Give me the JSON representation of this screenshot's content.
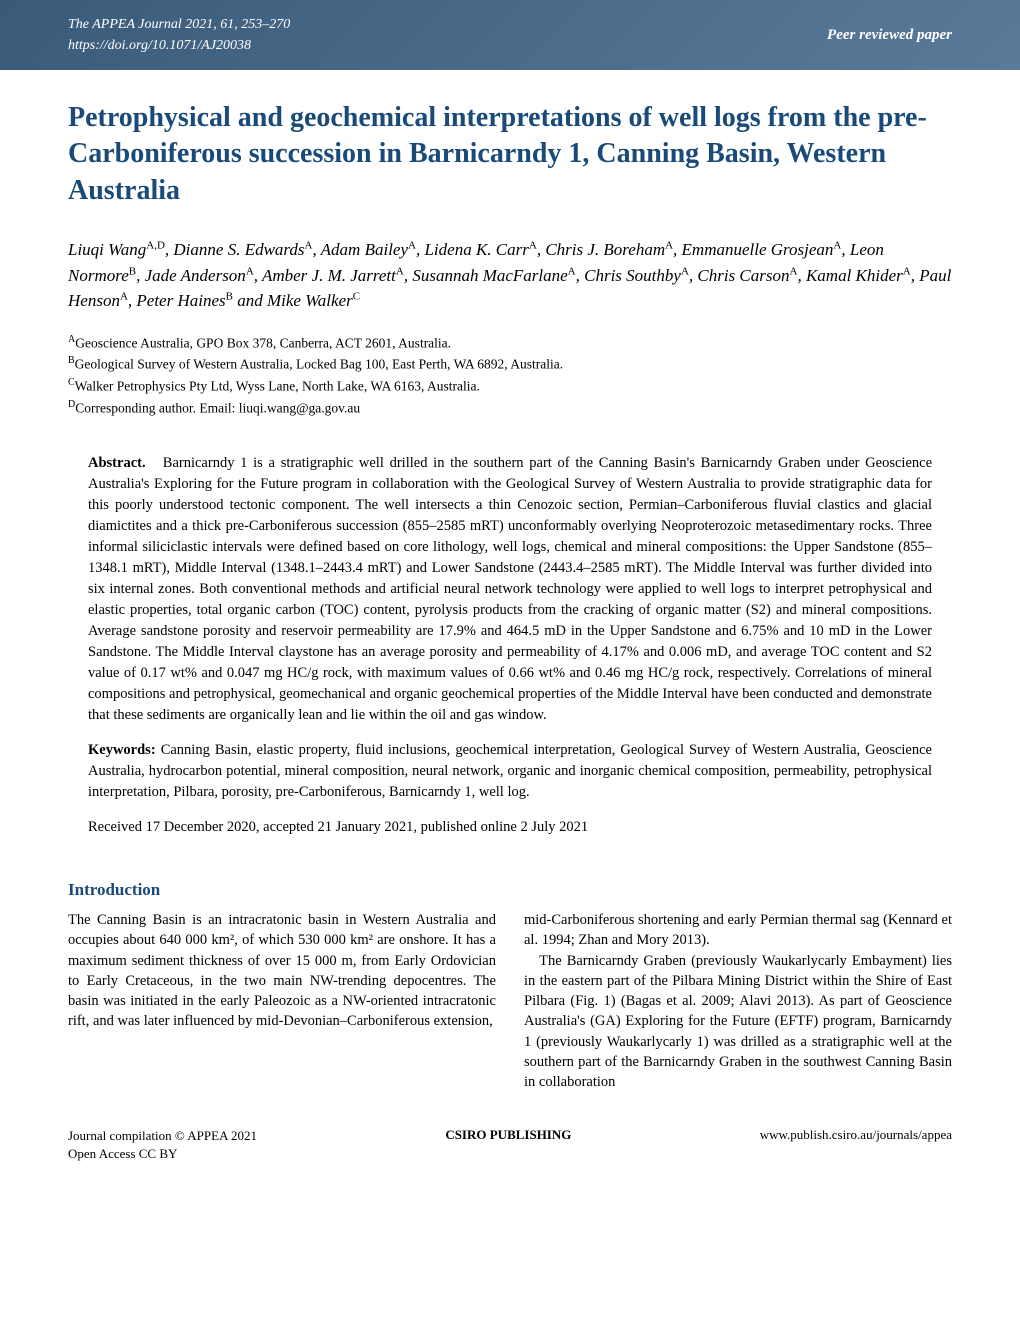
{
  "header": {
    "journal_line": "The APPEA Journal 2021, 61, 253–270",
    "doi_line": "https://doi.org/10.1071/AJ20038",
    "badge": "Peer reviewed paper",
    "bar_bg_start": "#3a5a7a",
    "bar_bg_end": "#5a7a9a"
  },
  "title": "Petrophysical and geochemical interpretations of well logs from the pre-Carboniferous succession in Barnicarndy 1, Canning Basin, Western Australia",
  "title_color": "#1a4a7a",
  "authors_html": "Liuqi Wang<sup>A,D</sup>, Dianne S. Edwards<sup>A</sup>, Adam Bailey<sup>A</sup>, Lidena K. Carr<sup>A</sup>, Chris J. Boreham<sup>A</sup>, Emmanuelle Grosjean<sup>A</sup>, Leon Normore<sup>B</sup>, Jade Anderson<sup>A</sup>, Amber J. M. Jarrett<sup>A</sup>, Susannah MacFarlane<sup>A</sup>, Chris Southby<sup>A</sup>, Chris Carson<sup>A</sup>, Kamal Khider<sup>A</sup>, Paul Henson<sup>A</sup>, Peter Haines<sup>B</sup> and Mike Walker<sup>C</sup>",
  "affiliations": [
    {
      "sup": "A",
      "text": "Geoscience Australia, GPO Box 378, Canberra, ACT 2601, Australia."
    },
    {
      "sup": "B",
      "text": "Geological Survey of Western Australia, Locked Bag 100, East Perth, WA 6892, Australia."
    },
    {
      "sup": "C",
      "text": "Walker Petrophysics Pty Ltd, Wyss Lane, North Lake, WA 6163, Australia."
    },
    {
      "sup": "D",
      "text": "Corresponding author. Email: liuqi.wang@ga.gov.au"
    }
  ],
  "abstract": {
    "label": "Abstract.",
    "body": "Barnicarndy 1 is a stratigraphic well drilled in the southern part of the Canning Basin's Barnicarndy Graben under Geoscience Australia's Exploring for the Future program in collaboration with the Geological Survey of Western Australia to provide stratigraphic data for this poorly understood tectonic component. The well intersects a thin Cenozoic section, Permian–Carboniferous fluvial clastics and glacial diamictites and a thick pre-Carboniferous succession (855–2585 mRT) unconformably overlying Neoproterozoic metasedimentary rocks. Three informal siliciclastic intervals were defined based on core lithology, well logs, chemical and mineral compositions: the Upper Sandstone (855–1348.1 mRT), Middle Interval (1348.1–2443.4 mRT) and Lower Sandstone (2443.4–2585 mRT). The Middle Interval was further divided into six internal zones. Both conventional methods and artificial neural network technology were applied to well logs to interpret petrophysical and elastic properties, total organic carbon (TOC) content, pyrolysis products from the cracking of organic matter (S2) and mineral compositions. Average sandstone porosity and reservoir permeability are 17.9% and 464.5 mD in the Upper Sandstone and 6.75% and 10 mD in the Lower Sandstone. The Middle Interval claystone has an average porosity and permeability of 4.17% and 0.006 mD, and average TOC content and S2 value of 0.17 wt% and 0.047 mg HC/g rock, with maximum values of 0.66 wt% and 0.46 mg HC/g rock, respectively. Correlations of mineral compositions and petrophysical, geomechanical and organic geochemical properties of the Middle Interval have been conducted and demonstrate that these sediments are organically lean and lie within the oil and gas window."
  },
  "keywords": {
    "label": "Keywords:",
    "body": "Canning Basin, elastic property, fluid inclusions, geochemical interpretation, Geological Survey of Western Australia, Geoscience Australia, hydrocarbon potential, mineral composition, neural network, organic and inorganic chemical composition, permeability, petrophysical interpretation, Pilbara, porosity, pre-Carboniferous, Barnicarndy 1, well log."
  },
  "dates": "Received 17 December 2020, accepted 21 January 2021, published online 2 July 2021",
  "intro": {
    "heading": "Introduction",
    "col1": "The Canning Basin is an intracratonic basin in Western Australia and occupies about 640 000 km², of which 530 000 km² are onshore. It has a maximum sediment thickness of over 15 000 m, from Early Ordovician to Early Cretaceous, in the two main NW-trending depocentres. The basin was initiated in the early Paleozoic as a NW-oriented intracratonic rift, and was later influenced by mid-Devonian–Carboniferous extension,",
    "col2_p1": "mid-Carboniferous shortening and early Permian thermal sag (Kennard et al. 1994; Zhan and Mory 2013).",
    "col2_p2": "The Barnicarndy Graben (previously Waukarlycarly Embayment) lies in the eastern part of the Pilbara Mining District within the Shire of East Pilbara (Fig. 1) (Bagas et al. 2009; Alavi 2013). As part of Geoscience Australia's (GA) Exploring for the Future (EFTF) program, Barnicarndy 1 (previously Waukarlycarly 1) was drilled as a stratigraphic well at the southern part of the Barnicarndy Graben in the southwest Canning Basin in collaboration"
  },
  "footer": {
    "left_line1": "Journal compilation © APPEA 2021",
    "left_line2": "Open Access CC BY",
    "center": "CSIRO PUBLISHING",
    "right": "www.publish.csiro.au/journals/appea"
  }
}
